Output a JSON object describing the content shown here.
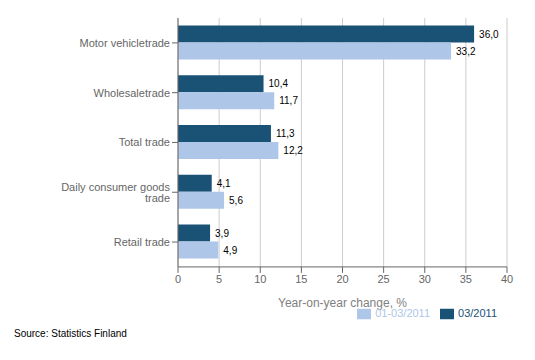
{
  "chart_data": {
    "type": "bar",
    "orientation": "horizontal",
    "categories": [
      "Motor vehicletrade",
      "Wholesaletrade",
      "Total trade",
      "Daily consumer goods trade",
      "Retail trade"
    ],
    "series": [
      {
        "name": "03/2011",
        "color": "#1a5276",
        "values": [
          36.0,
          10.4,
          11.3,
          4.1,
          3.9
        ],
        "value_labels": [
          "36,0",
          "10,4",
          "11,3",
          "4,1",
          "3,9"
        ]
      },
      {
        "name": "01-03/2011",
        "color": "#aec6e8",
        "values": [
          33.2,
          11.7,
          12.2,
          5.6,
          4.9
        ],
        "value_labels": [
          "33,2",
          "11,7",
          "12,2",
          "5,6",
          "4,9"
        ]
      }
    ],
    "xlabel": "Year-on-year change, %",
    "xlim": [
      0,
      40
    ],
    "xticks": [
      0,
      5,
      10,
      15,
      20,
      25,
      30,
      35,
      40
    ],
    "grid": true,
    "legend": "lower right",
    "data_labels": true,
    "annotations": [
      "Source: Statistics Finland"
    ]
  }
}
